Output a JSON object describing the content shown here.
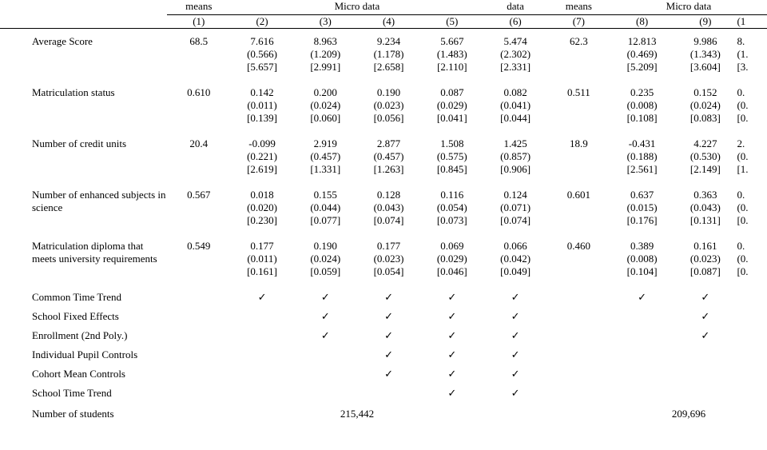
{
  "colors": {
    "text": "#000000",
    "background": "#ffffff",
    "rule": "#000000"
  },
  "typography": {
    "font_family": "Times New Roman",
    "font_size_pt": 10
  },
  "headers": {
    "means": "means",
    "micro": "Micro data",
    "data": "data",
    "cols": [
      "(1)",
      "(2)",
      "(3)",
      "(4)",
      "(5)",
      "(6)",
      "(7)",
      "(8)",
      "(9)",
      "(1"
    ]
  },
  "rows": [
    {
      "label": "Average Score",
      "main": [
        "68.5",
        "7.616",
        "8.963",
        "9.234",
        "5.667",
        "5.474",
        "62.3",
        "12.813",
        "9.986",
        "8."
      ],
      "se": [
        "",
        "(0.566)",
        "(1.209)",
        "(1.178)",
        "(1.483)",
        "(2.302)",
        "",
        "(0.469)",
        "(1.343)",
        "(1."
      ],
      "br": [
        "",
        "[5.657]",
        "[2.991]",
        "[2.658]",
        "[2.110]",
        "[2.331]",
        "",
        "[5.209]",
        "[3.604]",
        "[3."
      ]
    },
    {
      "label": "Matriculation status",
      "main": [
        "0.610",
        "0.142",
        "0.200",
        "0.190",
        "0.087",
        "0.082",
        "0.511",
        "0.235",
        "0.152",
        "0."
      ],
      "se": [
        "",
        "(0.011)",
        "(0.024)",
        "(0.023)",
        "(0.029)",
        "(0.041)",
        "",
        "(0.008)",
        "(0.024)",
        "(0."
      ],
      "br": [
        "",
        "[0.139]",
        "[0.060]",
        "[0.056]",
        "[0.041]",
        "[0.044]",
        "",
        "[0.108]",
        "[0.083]",
        "[0."
      ]
    },
    {
      "label": "Number of credit units",
      "main": [
        "20.4",
        "-0.099",
        "2.919",
        "2.877",
        "1.508",
        "1.425",
        "18.9",
        "-0.431",
        "4.227",
        "2."
      ],
      "se": [
        "",
        "(0.221)",
        "(0.457)",
        "(0.457)",
        "(0.575)",
        "(0.857)",
        "",
        "(0.188)",
        "(0.530)",
        "(0."
      ],
      "br": [
        "",
        "[2.619]",
        "[1.331]",
        "[1.263]",
        "[0.845]",
        "[0.906]",
        "",
        "[2.561]",
        "[2.149]",
        "[1."
      ]
    },
    {
      "label": "Number of enhanced subjects in science",
      "main": [
        "0.567",
        "0.018",
        "0.155",
        "0.128",
        "0.116",
        "0.124",
        "0.601",
        "0.637",
        "0.363",
        "0."
      ],
      "se": [
        "",
        "(0.020)",
        "(0.044)",
        "(0.043)",
        "(0.054)",
        "(0.071)",
        "",
        "(0.015)",
        "(0.043)",
        "(0."
      ],
      "br": [
        "",
        "[0.230]",
        "[0.077]",
        "[0.074]",
        "[0.073]",
        "[0.074]",
        "",
        "[0.176]",
        "[0.131]",
        "[0."
      ]
    },
    {
      "label": "Matriculation diploma that meets university requirements",
      "main": [
        "0.549",
        "0.177",
        "0.190",
        "0.177",
        "0.069",
        "0.066",
        "0.460",
        "0.389",
        "0.161",
        "0."
      ],
      "se": [
        "",
        "(0.011)",
        "(0.024)",
        "(0.023)",
        "(0.029)",
        "(0.042)",
        "",
        "(0.008)",
        "(0.023)",
        "(0."
      ],
      "br": [
        "",
        "[0.161]",
        "[0.059]",
        "[0.054]",
        "[0.046]",
        "[0.049]",
        "",
        "[0.104]",
        "[0.087]",
        "[0."
      ]
    }
  ],
  "controls": [
    {
      "label": "Common Time Trend",
      "checks": [
        0,
        1,
        1,
        1,
        1,
        1,
        0,
        1,
        1,
        0
      ]
    },
    {
      "label": "School Fixed Effects",
      "checks": [
        0,
        0,
        1,
        1,
        1,
        1,
        0,
        0,
        1,
        0
      ]
    },
    {
      "label": "Enrollment (2nd Poly.)",
      "checks": [
        0,
        0,
        1,
        1,
        1,
        1,
        0,
        0,
        1,
        0
      ]
    },
    {
      "label": "Individual Pupil Controls",
      "checks": [
        0,
        0,
        0,
        1,
        1,
        1,
        0,
        0,
        0,
        0
      ]
    },
    {
      "label": "Cohort Mean Controls",
      "checks": [
        0,
        0,
        0,
        1,
        1,
        1,
        0,
        0,
        0,
        0
      ]
    },
    {
      "label": "School Time Trend",
      "checks": [
        0,
        0,
        0,
        0,
        1,
        1,
        0,
        0,
        0,
        0
      ]
    }
  ],
  "footer": {
    "label": "Number of students",
    "left_total": "215,442",
    "right_total": "209,696"
  },
  "checkmark": "✓"
}
